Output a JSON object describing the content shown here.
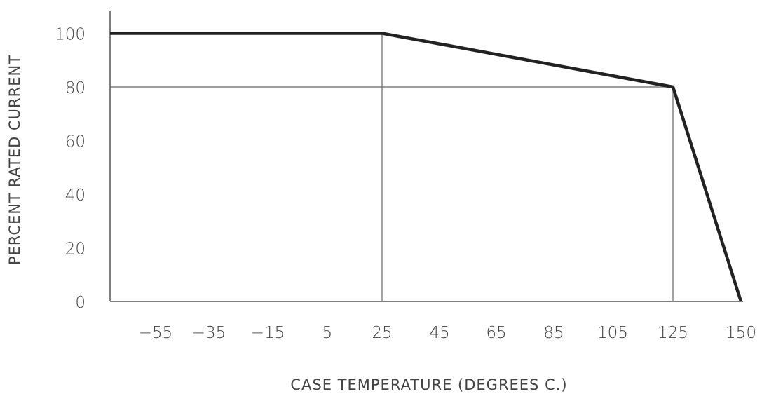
{
  "chart_data": {
    "type": "line",
    "xlabel": "CASE TEMPERATURE (DEGREES C.)",
    "ylabel": "PERCENT RATED CURRENT",
    "x_tick_labels": [
      "−55",
      "−35",
      "−15",
      "5",
      "25",
      "45",
      "65",
      "85",
      "105",
      "125",
      "150"
    ],
    "y_tick_labels": [
      "100",
      "80",
      "60",
      "40",
      "20",
      "0"
    ],
    "y_ticks": [
      100,
      80,
      60,
      40,
      20,
      0
    ],
    "ylim": [
      0,
      110
    ],
    "grid": false,
    "series": [
      {
        "x": [
          "-55",
          "25",
          "125",
          "150"
        ],
        "y": [
          100,
          100,
          80,
          0
        ]
      }
    ],
    "reference_lines": [
      {
        "kind": "horizontal",
        "y": 80
      },
      {
        "kind": "vertical",
        "x": "25"
      },
      {
        "kind": "vertical",
        "x": "125"
      }
    ],
    "colors": {
      "curve": "#222222",
      "axes": "#555555",
      "text": "#444444"
    }
  }
}
